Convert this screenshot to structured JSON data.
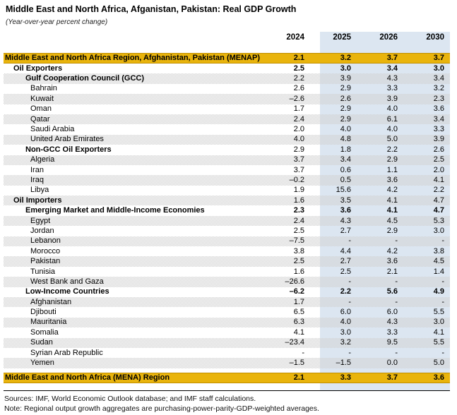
{
  "title": "Middle East and North Africa, Afganistan, Pakistan: Real GDP Growth",
  "subtitle": "(Year-over-year percent change)",
  "colors": {
    "gold": "#E9B40C",
    "band_blue": "#DCE6F1"
  },
  "table": {
    "columns": [
      "2024",
      "2025",
      "2026",
      "2030"
    ],
    "rows": [
      {
        "label": "Middle East and North Africa Region, Afghanistan, Pakistan (MENAP)",
        "level": 0,
        "style": "gold",
        "shaded": false,
        "values": [
          "2.1",
          "3.2",
          "3.7",
          "3.7"
        ]
      },
      {
        "label": "Oil Exporters",
        "level": 1,
        "style": "bold",
        "shaded": false,
        "values": [
          "2.5",
          "3.0",
          "3.4",
          "3.0"
        ]
      },
      {
        "label": "Gulf Cooperation Council (GCC)",
        "level": 2,
        "style": "bold-label",
        "shaded": true,
        "values": [
          "2.2",
          "3.9",
          "4.3",
          "3.4"
        ]
      },
      {
        "label": "Bahrain",
        "level": 3,
        "style": "normal",
        "shaded": false,
        "values": [
          "2.6",
          "2.9",
          "3.3",
          "3.2"
        ]
      },
      {
        "label": "Kuwait",
        "level": 3,
        "style": "normal",
        "shaded": true,
        "values": [
          "–2.6",
          "2.6",
          "3.9",
          "2.3"
        ]
      },
      {
        "label": "Oman",
        "level": 3,
        "style": "normal",
        "shaded": false,
        "values": [
          "1.7",
          "2.9",
          "4.0",
          "3.6"
        ]
      },
      {
        "label": "Qatar",
        "level": 3,
        "style": "normal",
        "shaded": true,
        "values": [
          "2.4",
          "2.9",
          "6.1",
          "3.4"
        ]
      },
      {
        "label": "Saudi Arabia",
        "level": 3,
        "style": "normal",
        "shaded": false,
        "values": [
          "2.0",
          "4.0",
          "4.0",
          "3.3"
        ]
      },
      {
        "label": "United Arab Emirates",
        "level": 3,
        "style": "normal",
        "shaded": true,
        "values": [
          "4.0",
          "4.8",
          "5.0",
          "3.9"
        ]
      },
      {
        "label": "Non-GCC Oil Exporters",
        "level": 2,
        "style": "bold-label",
        "shaded": false,
        "values": [
          "2.9",
          "1.8",
          "2.2",
          "2.6"
        ]
      },
      {
        "label": "Algeria",
        "level": 3,
        "style": "normal",
        "shaded": true,
        "values": [
          "3.7",
          "3.4",
          "2.9",
          "2.5"
        ]
      },
      {
        "label": "Iran",
        "level": 3,
        "style": "normal",
        "shaded": false,
        "values": [
          "3.7",
          "0.6",
          "1.1",
          "2.0"
        ]
      },
      {
        "label": "Iraq",
        "level": 3,
        "style": "normal",
        "shaded": true,
        "values": [
          "–0.2",
          "0.5",
          "3.6",
          "4.1"
        ]
      },
      {
        "label": "Libya",
        "level": 3,
        "style": "normal",
        "shaded": false,
        "values": [
          "1.9",
          "15.6",
          "4.2",
          "2.2"
        ]
      },
      {
        "label": "Oil Importers",
        "level": 1,
        "style": "bold-label",
        "shaded": true,
        "values": [
          "1.6",
          "3.5",
          "4.1",
          "4.7"
        ]
      },
      {
        "label": "Emerging Market and Middle-Income Economies",
        "level": 2,
        "style": "bold",
        "shaded": false,
        "values": [
          "2.3",
          "3.6",
          "4.1",
          "4.7"
        ]
      },
      {
        "label": "Egypt",
        "level": 3,
        "style": "normal",
        "shaded": true,
        "values": [
          "2.4",
          "4.3",
          "4.5",
          "5.3"
        ]
      },
      {
        "label": "Jordan",
        "level": 3,
        "style": "normal",
        "shaded": false,
        "values": [
          "2.5",
          "2.7",
          "2.9",
          "3.0"
        ]
      },
      {
        "label": "Lebanon",
        "level": 3,
        "style": "normal",
        "shaded": true,
        "values": [
          "–7.5",
          "-",
          "-",
          "-"
        ]
      },
      {
        "label": "Morocco",
        "level": 3,
        "style": "normal",
        "shaded": false,
        "values": [
          "3.8",
          "4.4",
          "4.2",
          "3.8"
        ]
      },
      {
        "label": "Pakistan",
        "level": 3,
        "style": "normal",
        "shaded": true,
        "values": [
          "2.5",
          "2.7",
          "3.6",
          "4.5"
        ]
      },
      {
        "label": "Tunisia",
        "level": 3,
        "style": "normal",
        "shaded": false,
        "values": [
          "1.6",
          "2.5",
          "2.1",
          "1.4"
        ]
      },
      {
        "label": "West Bank and Gaza",
        "level": 3,
        "style": "normal",
        "shaded": true,
        "values": [
          "–26.6",
          "-",
          "-",
          "-"
        ]
      },
      {
        "label": "Low-Income Countries",
        "level": 2,
        "style": "bold",
        "shaded": false,
        "values": [
          "–6.2",
          "2.2",
          "5.6",
          "4.9"
        ]
      },
      {
        "label": "Afghanistan",
        "level": 3,
        "style": "normal",
        "shaded": true,
        "values": [
          "1.7",
          "-",
          "-",
          "-"
        ]
      },
      {
        "label": "Djibouti",
        "level": 3,
        "style": "normal",
        "shaded": false,
        "values": [
          "6.5",
          "6.0",
          "6.0",
          "5.5"
        ]
      },
      {
        "label": "Mauritania",
        "level": 3,
        "style": "normal",
        "shaded": true,
        "values": [
          "6.3",
          "4.0",
          "4.3",
          "3.0"
        ]
      },
      {
        "label": "Somalia",
        "level": 3,
        "style": "normal",
        "shaded": false,
        "values": [
          "4.1",
          "3.0",
          "3.3",
          "4.1"
        ]
      },
      {
        "label": "Sudan",
        "level": 3,
        "style": "normal",
        "shaded": true,
        "values": [
          "–23.4",
          "3.2",
          "9.5",
          "5.5"
        ]
      },
      {
        "label": "Syrian Arab Republic",
        "level": 3,
        "style": "normal",
        "shaded": false,
        "values": [
          "-",
          "-",
          "-",
          "-"
        ]
      },
      {
        "label": "Yemen",
        "level": 3,
        "style": "normal",
        "shaded": true,
        "values": [
          "–1.5",
          "–1.5",
          "0.0",
          "5.0"
        ]
      },
      {
        "label": "Middle East and North Africa (MENA) Region",
        "level": 0,
        "style": "gold",
        "shaded": false,
        "values": [
          "2.1",
          "3.3",
          "3.7",
          "3.6"
        ]
      }
    ]
  },
  "footer": {
    "sources": "Sources: IMF, World Economic Outlook database; and IMF staff calculations.",
    "note": "Note: Regional output growth aggregates are purchasing-power-parity-GDP-weighted averages."
  }
}
